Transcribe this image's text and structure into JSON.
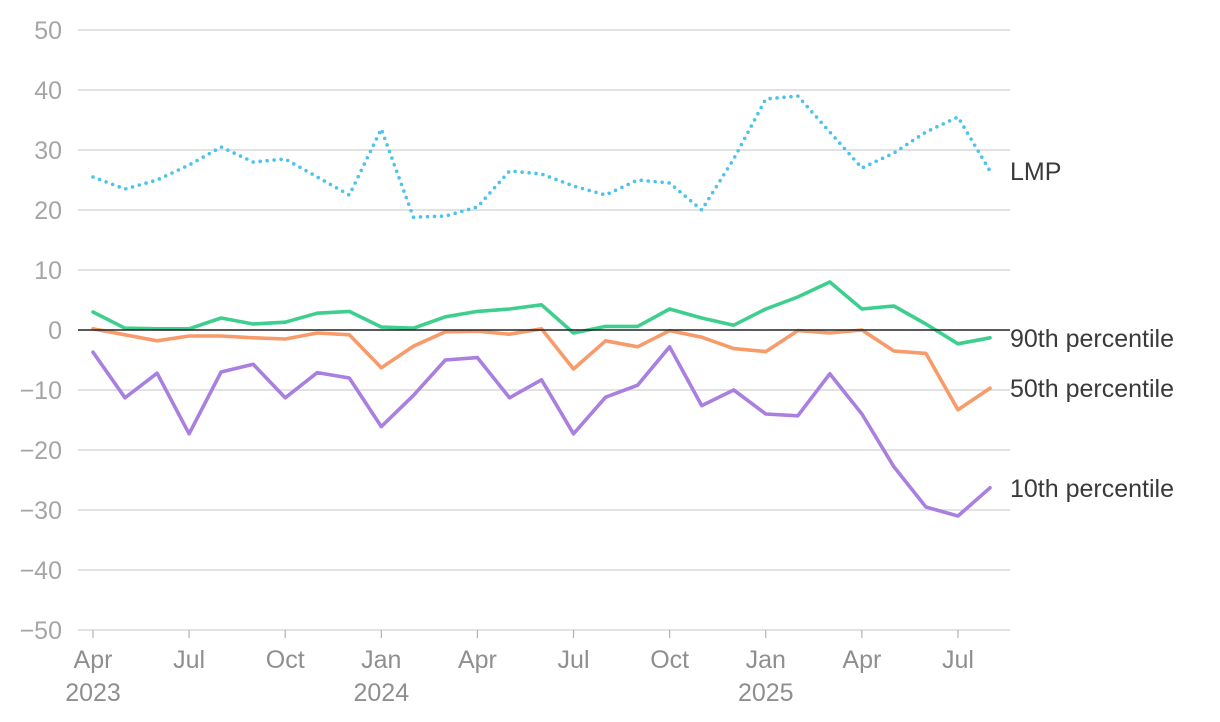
{
  "chart_data": {
    "type": "line",
    "title": "",
    "xlabel": "",
    "ylabel": "",
    "ylim": [
      -50,
      50
    ],
    "yticks": [
      50,
      40,
      30,
      20,
      10,
      0,
      -10,
      -20,
      -30,
      -40,
      -50
    ],
    "ytick_labels": [
      "50",
      "40",
      "30",
      "20",
      "10",
      "0",
      "−10",
      "−20",
      "−30",
      "−40",
      "−50"
    ],
    "grid": true,
    "legend": "direct labels at right end of lines",
    "x": [
      "2023-04",
      "2023-05",
      "2023-06",
      "2023-07",
      "2023-08",
      "2023-09",
      "2023-10",
      "2023-11",
      "2023-12",
      "2024-01",
      "2024-02",
      "2024-03",
      "2024-04",
      "2024-05",
      "2024-06",
      "2024-07",
      "2024-08",
      "2024-09",
      "2024-10",
      "2024-11",
      "2024-12",
      "2025-01",
      "2025-02",
      "2025-03",
      "2025-04",
      "2025-05",
      "2025-06",
      "2025-07",
      "2025-08"
    ],
    "xtick_labels": [
      {
        "month": "Apr",
        "year": "2023"
      },
      {
        "month": "Jul",
        "year": ""
      },
      {
        "month": "Oct",
        "year": ""
      },
      {
        "month": "Jan",
        "year": "2024"
      },
      {
        "month": "Apr",
        "year": ""
      },
      {
        "month": "Jul",
        "year": ""
      },
      {
        "month": "Oct",
        "year": ""
      },
      {
        "month": "Jan",
        "year": "2025"
      },
      {
        "month": "Apr",
        "year": ""
      },
      {
        "month": "Jul",
        "year": ""
      }
    ],
    "series": [
      {
        "name": "LMP",
        "color": "#4cc3ec",
        "style": "dotted",
        "values": [
          25.5,
          23.5,
          25,
          27.5,
          30.5,
          28,
          28.5,
          25.5,
          22.5,
          33.5,
          18.8,
          19,
          20.5,
          26.5,
          26,
          24,
          22.5,
          25,
          24.5,
          20,
          28.5,
          38.5,
          39,
          33,
          27,
          29.5,
          33,
          35.5,
          26.5
        ]
      },
      {
        "name": "90th percentile",
        "color": "#3ecf8e",
        "style": "solid",
        "values": [
          3,
          0.3,
          0.2,
          0.2,
          2,
          1,
          1.3,
          2.8,
          3.1,
          0.5,
          0.3,
          2.2,
          3.1,
          3.5,
          4.2,
          -0.5,
          0.6,
          0.6,
          3.5,
          2,
          0.8,
          3.5,
          5.5,
          8,
          3.5,
          4,
          1,
          -2.3,
          -1.3
        ]
      },
      {
        "name": "50th percentile",
        "color": "#f79b6a",
        "style": "solid",
        "values": [
          0.2,
          -0.8,
          -1.8,
          -1,
          -1,
          -1.3,
          -1.5,
          -0.5,
          -0.8,
          -6.3,
          -2.7,
          -0.3,
          -0.2,
          -0.7,
          0.2,
          -6.5,
          -1.8,
          -2.8,
          -0.1,
          -1.2,
          -3.1,
          -3.6,
          -0.1,
          -0.5,
          0,
          -3.5,
          -3.9,
          -13.3,
          -9.7
        ]
      },
      {
        "name": "10th percentile",
        "color": "#a97fdf",
        "style": "solid",
        "values": [
          -3.7,
          -11.3,
          -7.2,
          -17.3,
          -7,
          -5.7,
          -11.3,
          -7.1,
          -8,
          -16.1,
          -10.9,
          -5,
          -4.6,
          -11.3,
          -8.3,
          -17.3,
          -11.2,
          -9.2,
          -2.8,
          -12.6,
          -10,
          -14,
          -14.3,
          -7.3,
          -14,
          -22.8,
          -29.5,
          -31,
          -26.3
        ]
      }
    ]
  }
}
